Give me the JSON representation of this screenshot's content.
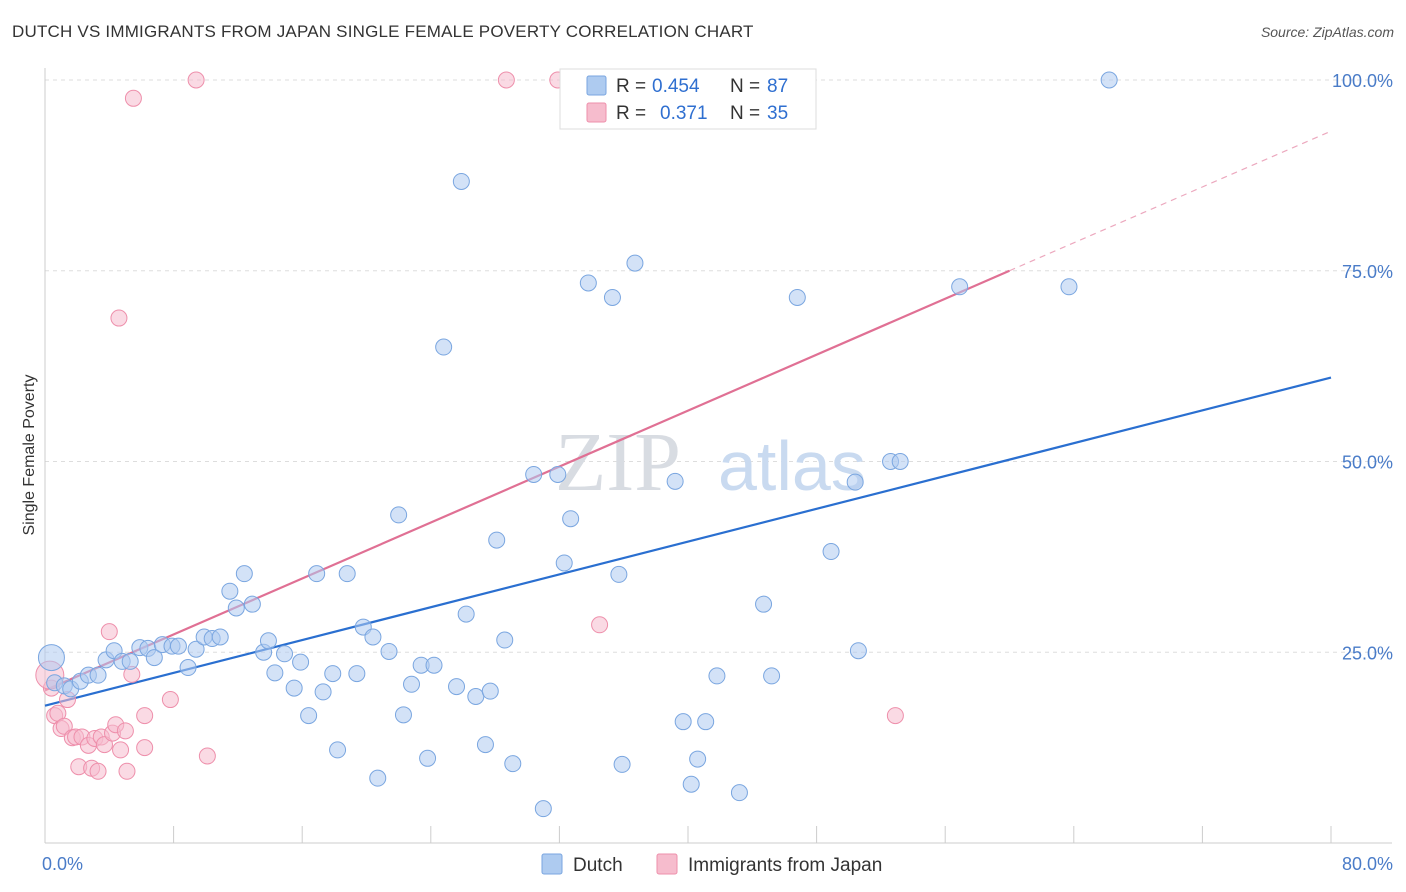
{
  "header": {
    "title": "DUTCH VS IMMIGRANTS FROM JAPAN SINGLE FEMALE POVERTY CORRELATION CHART",
    "source": "Source: ZipAtlas.com"
  },
  "watermark": {
    "zip": "ZIP",
    "atlas": "atlas"
  },
  "colors": {
    "dutch_fill": "#aecbf0",
    "dutch_stroke": "#7aa6e0",
    "dutch_line": "#2a6fd0",
    "japan_fill": "#f6bccd",
    "japan_stroke": "#ee8fab",
    "japan_line": "#e07094",
    "grid": "#dddddd",
    "tick_label": "#4a7cc8"
  },
  "legend_top": {
    "rows": [
      {
        "r_label": "R =",
        "r_value": "0.454",
        "n_label": "N =",
        "n_value": "87"
      },
      {
        "r_label": "R =",
        "r_value": "0.371",
        "n_label": "N =",
        "n_value": "35"
      }
    ]
  },
  "legend_bottom": {
    "dutch": "Dutch",
    "japan": "Immigrants from Japan"
  },
  "chart_data": {
    "type": "scatter",
    "title": "DUTCH VS IMMIGRANTS FROM JAPAN SINGLE FEMALE POVERTY CORRELATION CHART",
    "xlabel": "",
    "ylabel": "Single Female Poverty",
    "xlim": [
      0,
      80
    ],
    "ylim": [
      0,
      100
    ],
    "x_tick_labels": {
      "min": "0.0%",
      "max": "80.0%"
    },
    "y_tick_labels": [
      "25.0%",
      "50.0%",
      "75.0%",
      "100.0%"
    ],
    "y_ticks": [
      25,
      50,
      75,
      100
    ],
    "grid": true,
    "series": [
      {
        "name": "Dutch",
        "R": 0.454,
        "N": 87,
        "trend": {
          "x": [
            0,
            80
          ],
          "y": [
            18.0,
            61.0
          ]
        },
        "points": [
          [
            0.4,
            24.3
          ],
          [
            0.6,
            21.0
          ],
          [
            1.2,
            20.6
          ],
          [
            1.6,
            20.2
          ],
          [
            2.2,
            21.2
          ],
          [
            2.7,
            22.0
          ],
          [
            3.3,
            22.0
          ],
          [
            3.8,
            24.0
          ],
          [
            4.3,
            25.2
          ],
          [
            4.8,
            23.8
          ],
          [
            5.3,
            23.8
          ],
          [
            5.9,
            25.6
          ],
          [
            6.4,
            25.5
          ],
          [
            6.8,
            24.3
          ],
          [
            7.3,
            26.0
          ],
          [
            7.9,
            25.8
          ],
          [
            8.3,
            25.8
          ],
          [
            8.9,
            23.0
          ],
          [
            9.4,
            25.4
          ],
          [
            9.9,
            27.0
          ],
          [
            10.4,
            26.8
          ],
          [
            10.9,
            27.0
          ],
          [
            11.5,
            33.0
          ],
          [
            11.9,
            30.8
          ],
          [
            12.4,
            35.3
          ],
          [
            12.9,
            31.3
          ],
          [
            13.6,
            25.0
          ],
          [
            13.9,
            26.5
          ],
          [
            14.3,
            22.3
          ],
          [
            14.9,
            24.8
          ],
          [
            15.5,
            20.3
          ],
          [
            15.9,
            23.7
          ],
          [
            16.4,
            16.7
          ],
          [
            16.9,
            35.3
          ],
          [
            17.3,
            19.8
          ],
          [
            17.9,
            22.2
          ],
          [
            18.2,
            12.2
          ],
          [
            18.8,
            35.3
          ],
          [
            19.4,
            22.2
          ],
          [
            19.8,
            28.3
          ],
          [
            20.4,
            27.0
          ],
          [
            20.7,
            8.5
          ],
          [
            21.4,
            25.1
          ],
          [
            22.0,
            43.0
          ],
          [
            22.3,
            16.8
          ],
          [
            22.8,
            20.8
          ],
          [
            23.4,
            23.3
          ],
          [
            23.8,
            11.1
          ],
          [
            24.2,
            23.3
          ],
          [
            24.8,
            65.0
          ],
          [
            25.6,
            20.5
          ],
          [
            25.9,
            86.7
          ],
          [
            26.2,
            30.0
          ],
          [
            26.8,
            19.2
          ],
          [
            27.4,
            12.9
          ],
          [
            27.7,
            19.9
          ],
          [
            28.1,
            39.7
          ],
          [
            28.6,
            26.6
          ],
          [
            29.1,
            10.4
          ],
          [
            30.4,
            48.3
          ],
          [
            31.0,
            4.5
          ],
          [
            31.9,
            48.3
          ],
          [
            32.3,
            36.7
          ],
          [
            32.7,
            42.5
          ],
          [
            33.8,
            73.4
          ],
          [
            35.3,
            71.5
          ],
          [
            35.7,
            35.2
          ],
          [
            35.9,
            10.3
          ],
          [
            36.7,
            76.0
          ],
          [
            39.2,
            47.4
          ],
          [
            39.7,
            15.9
          ],
          [
            40.2,
            7.7
          ],
          [
            40.6,
            11.0
          ],
          [
            41.1,
            15.9
          ],
          [
            41.8,
            21.9
          ],
          [
            43.2,
            6.6
          ],
          [
            44.7,
            31.3
          ],
          [
            45.2,
            21.9
          ],
          [
            46.8,
            71.5
          ],
          [
            48.9,
            38.2
          ],
          [
            50.4,
            47.3
          ],
          [
            50.6,
            25.2
          ],
          [
            52.6,
            50.0
          ],
          [
            53.2,
            50.0
          ],
          [
            56.9,
            72.9
          ],
          [
            63.7,
            72.9
          ],
          [
            66.2,
            100.0
          ]
        ]
      },
      {
        "name": "Immigrants from Japan",
        "R": 0.371,
        "N": 35,
        "trend": {
          "x": [
            0,
            60
          ],
          "y": [
            20.0,
            75.0
          ]
        },
        "trend_dashed": {
          "x": [
            60,
            80
          ],
          "y": [
            75.0,
            93.3
          ]
        },
        "points": [
          [
            0.4,
            20.3
          ],
          [
            0.6,
            16.7
          ],
          [
            0.8,
            17.0
          ],
          [
            1.0,
            15.0
          ],
          [
            1.2,
            15.3
          ],
          [
            1.4,
            18.8
          ],
          [
            1.7,
            13.8
          ],
          [
            1.9,
            13.9
          ],
          [
            2.1,
            10.0
          ],
          [
            2.3,
            13.9
          ],
          [
            2.7,
            12.8
          ],
          [
            2.9,
            9.8
          ],
          [
            3.1,
            13.7
          ],
          [
            3.3,
            9.4
          ],
          [
            3.5,
            13.9
          ],
          [
            3.7,
            12.9
          ],
          [
            4.0,
            27.7
          ],
          [
            4.2,
            14.4
          ],
          [
            4.4,
            15.5
          ],
          [
            4.6,
            68.8
          ],
          [
            4.7,
            12.2
          ],
          [
            5.0,
            14.7
          ],
          [
            5.1,
            9.4
          ],
          [
            5.4,
            22.1
          ],
          [
            5.5,
            97.6
          ],
          [
            6.2,
            12.5
          ],
          [
            6.2,
            16.7
          ],
          [
            7.8,
            18.8
          ],
          [
            9.4,
            100.0
          ],
          [
            10.1,
            11.4
          ],
          [
            28.7,
            100.0
          ],
          [
            31.9,
            100.0
          ],
          [
            34.5,
            28.6
          ],
          [
            52.9,
            16.7
          ],
          [
            0.3,
            22.0
          ]
        ]
      }
    ]
  },
  "axes": {
    "ylabel": "Single Female Poverty"
  }
}
